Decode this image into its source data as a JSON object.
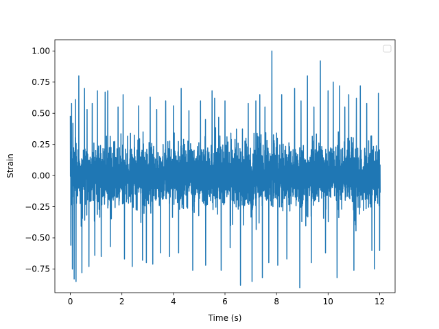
{
  "chart_data": {
    "type": "line",
    "title": "",
    "xlabel": "Time (s)",
    "ylabel": "Strain",
    "xlim": [
      -0.6,
      12.6
    ],
    "ylim": [
      -0.94,
      1.09
    ],
    "x_ticks": [
      0,
      2,
      4,
      6,
      8,
      10,
      12
    ],
    "x_tick_labels": [
      "0",
      "2",
      "4",
      "6",
      "8",
      "10",
      "12"
    ],
    "y_ticks": [
      -0.75,
      -0.5,
      -0.25,
      0.0,
      0.25,
      0.5,
      0.75,
      1.0
    ],
    "y_tick_labels": [
      "−0.75",
      "−0.50",
      "−0.25",
      "0.00",
      "0.25",
      "0.50",
      "0.75",
      "1.00"
    ],
    "grid": false,
    "legend": {
      "placement": "top-right",
      "entries": []
    },
    "series": [
      {
        "color": "#1f77b4",
        "x_start": 0,
        "x_end": 12.02,
        "samples": 3000,
        "baseline_amplitude": 0.25,
        "peaks": [
          [
            0.0,
            0.48
          ],
          [
            0.02,
            -0.56
          ],
          [
            0.05,
            0.58
          ],
          [
            0.08,
            -0.75
          ],
          [
            0.1,
            0.42
          ],
          [
            0.15,
            -0.83
          ],
          [
            0.2,
            0.61
          ],
          [
            0.22,
            -0.85
          ],
          [
            0.33,
            0.8
          ],
          [
            0.45,
            -0.78
          ],
          [
            0.55,
            0.7
          ],
          [
            0.65,
            0.53
          ],
          [
            0.72,
            -0.73
          ],
          [
            0.85,
            0.58
          ],
          [
            0.95,
            -0.64
          ],
          [
            1.05,
            0.68
          ],
          [
            1.2,
            -0.65
          ],
          [
            1.35,
            0.67
          ],
          [
            1.45,
            0.68
          ],
          [
            1.55,
            -0.57
          ],
          [
            1.85,
            0.55
          ],
          [
            2.05,
            0.65
          ],
          [
            2.1,
            -0.67
          ],
          [
            2.4,
            -0.73
          ],
          [
            2.65,
            0.56
          ],
          [
            2.8,
            -0.68
          ],
          [
            2.95,
            -0.7
          ],
          [
            3.1,
            0.63
          ],
          [
            3.2,
            -0.71
          ],
          [
            3.35,
            0.53
          ],
          [
            3.5,
            -0.62
          ],
          [
            3.7,
            0.6
          ],
          [
            3.85,
            -0.65
          ],
          [
            4.0,
            0.56
          ],
          [
            4.2,
            -0.62
          ],
          [
            4.3,
            0.7
          ],
          [
            4.6,
            0.52
          ],
          [
            4.75,
            -0.76
          ],
          [
            5.05,
            0.6
          ],
          [
            5.25,
            -0.72
          ],
          [
            5.5,
            0.68
          ],
          [
            5.6,
            0.62
          ],
          [
            5.85,
            -0.76
          ],
          [
            6.0,
            0.6
          ],
          [
            6.2,
            -0.58
          ],
          [
            6.6,
            -0.88
          ],
          [
            6.9,
            0.58
          ],
          [
            7.05,
            -0.85
          ],
          [
            7.2,
            0.6
          ],
          [
            7.35,
            0.65
          ],
          [
            7.45,
            -0.82
          ],
          [
            7.55,
            0.55
          ],
          [
            7.7,
            -0.7
          ],
          [
            7.82,
            1.0
          ],
          [
            8.05,
            -0.72
          ],
          [
            8.2,
            0.65
          ],
          [
            8.4,
            -0.67
          ],
          [
            8.7,
            0.7
          ],
          [
            8.9,
            -0.9
          ],
          [
            8.95,
            0.6
          ],
          [
            9.2,
            0.8
          ],
          [
            9.35,
            -0.7
          ],
          [
            9.45,
            0.55
          ],
          [
            9.7,
            0.92
          ],
          [
            9.9,
            -0.62
          ],
          [
            10.0,
            0.68
          ],
          [
            10.2,
            0.75
          ],
          [
            10.35,
            -0.82
          ],
          [
            10.45,
            0.72
          ],
          [
            10.65,
            0.55
          ],
          [
            10.8,
            0.65
          ],
          [
            11.0,
            -0.76
          ],
          [
            11.1,
            0.62
          ],
          [
            11.25,
            0.72
          ],
          [
            11.5,
            0.58
          ],
          [
            11.7,
            -0.6
          ],
          [
            11.8,
            -0.75
          ],
          [
            11.95,
            0.66
          ],
          [
            12.0,
            -0.6
          ]
        ]
      }
    ]
  }
}
